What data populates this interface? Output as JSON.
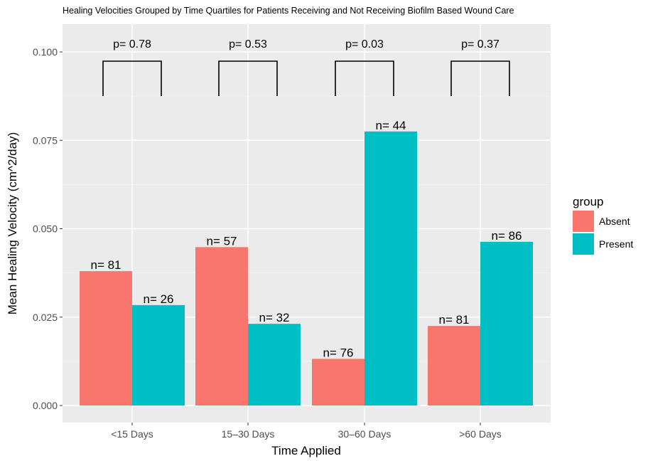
{
  "chart_data": {
    "type": "bar",
    "title": "Healing Velocities Grouped by Time Quartiles for Patients Receiving and Not Receiving Biofilm Based Wound Care",
    "xlabel": "Time Applied",
    "ylabel": "Mean Healing Velocity (cm^2/day)",
    "categories": [
      "<15 Days",
      "15–30 Days",
      "30–60 Days",
      ">60 Days"
    ],
    "yticks": [
      "0.000",
      "0.025",
      "0.050",
      "0.075",
      "0.100"
    ],
    "ylim": [
      0,
      0.1
    ],
    "series": [
      {
        "name": "Absent",
        "color": "#F8766D",
        "values": [
          0.038,
          0.0448,
          0.0132,
          0.0225
        ],
        "n_labels": [
          "n= 81",
          "n= 57",
          "n= 76",
          "n= 81"
        ]
      },
      {
        "name": "Present",
        "color": "#00BFC4",
        "values": [
          0.0284,
          0.0231,
          0.0775,
          0.0463
        ],
        "n_labels": [
          "n= 26",
          "n= 32",
          "n= 44",
          "n= 86"
        ]
      }
    ],
    "p_values": [
      "p= 0.78",
      "p= 0.53",
      "p= 0.03",
      "p= 0.37"
    ],
    "legend": {
      "title": "group",
      "position": "right"
    },
    "grid": true,
    "panel_background": "#EBEBEB"
  }
}
